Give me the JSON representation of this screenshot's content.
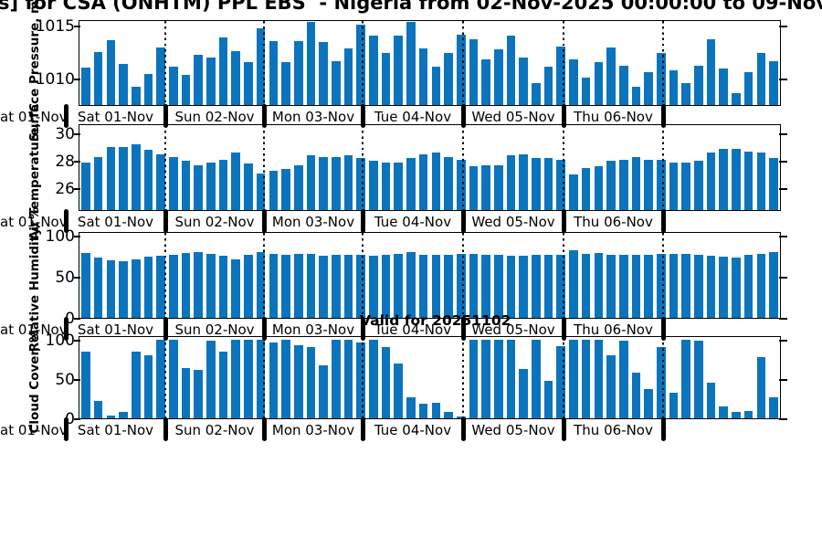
{
  "title": "s] for CSA (ONHTM) PPL EBS  - Nigeria from 02-Nov-2025 00:00:00 to 09-Nov",
  "annotations": {
    "valid_note": "Valid for 20251102"
  },
  "colors": {
    "bar": "#0b74bc",
    "axis": "#000000",
    "background": "#ffffff"
  },
  "x_axis": {
    "day_labels": [
      "Sat 01-Nov",
      "Sun 02-Nov",
      "Mon 03-Nov",
      "Tue 04-Nov",
      "Wed 05-Nov",
      "Thu 06-Nov"
    ],
    "clipped_left_label": "at 01-Nov",
    "samples_per_day": 8
  },
  "chart_data": [
    {
      "type": "bar",
      "ylabel": "Surface Pressure, mb",
      "yticks": [
        1010,
        1015
      ],
      "ylim": [
        1007.5,
        1015.4
      ],
      "values": [
        1011.0,
        1012.5,
        1013.6,
        1011.4,
        1009.2,
        1010.4,
        1012.9,
        1011.1,
        1010.3,
        1012.2,
        1012.0,
        1013.9,
        1012.6,
        1011.5,
        1014.7,
        1013.5,
        1011.5,
        1013.5,
        1015.3,
        1013.4,
        1011.6,
        1012.8,
        1015.1,
        1014.0,
        1012.4,
        1014.0,
        1015.3,
        1012.8,
        1011.1,
        1012.4,
        1014.1,
        1013.7,
        1011.8,
        1012.7,
        1014.0,
        1012.0,
        1009.6,
        1011.1,
        1013.0,
        1011.8,
        1010.1,
        1011.5,
        1012.9,
        1011.2,
        1009.2,
        1010.6,
        1012.4,
        1010.8,
        1009.6,
        1011.2,
        1013.7,
        1010.9,
        1008.6,
        1010.6,
        1012.4,
        1011.6
      ]
    },
    {
      "type": "bar",
      "ylabel": "Air Temperature, °C",
      "yticks": [
        26,
        28,
        30
      ],
      "ylim": [
        24.4,
        30.6
      ],
      "values": [
        27.9,
        28.3,
        29.0,
        29.0,
        29.2,
        28.8,
        28.5,
        28.3,
        28.0,
        27.7,
        27.9,
        28.1,
        28.6,
        27.8,
        27.1,
        27.3,
        27.4,
        27.7,
        28.4,
        28.3,
        28.3,
        28.4,
        28.2,
        28.0,
        27.9,
        27.9,
        28.2,
        28.5,
        28.6,
        28.3,
        28.1,
        27.6,
        27.7,
        27.7,
        28.4,
        28.5,
        28.2,
        28.2,
        28.1,
        27.0,
        27.5,
        27.6,
        28.0,
        28.1,
        28.3,
        28.1,
        28.1,
        27.9,
        27.9,
        28.0,
        28.6,
        28.9,
        28.9,
        28.7,
        28.6,
        28.2
      ]
    },
    {
      "type": "bar",
      "ylabel": "Relative Humidity, %",
      "yticks": [
        0,
        50,
        100
      ],
      "ylim": [
        0,
        103
      ],
      "values": [
        79,
        73,
        70,
        69,
        71,
        74,
        75,
        77,
        79,
        80,
        78,
        75,
        71,
        77,
        80,
        78,
        76,
        78,
        78,
        75,
        77,
        76,
        76,
        75,
        77,
        78,
        80,
        77,
        77,
        76,
        78,
        78,
        76,
        76,
        75,
        75,
        76,
        76,
        76,
        82,
        78,
        79,
        77,
        77,
        76,
        77,
        78,
        78,
        78,
        77,
        75,
        74,
        73,
        76,
        78,
        80
      ]
    },
    {
      "type": "bar",
      "ylabel": "Cloud Cover, %",
      "yticks": [
        0,
        50,
        100
      ],
      "ylim": [
        0,
        103
      ],
      "values": [
        84,
        22,
        4,
        8,
        84,
        80,
        100,
        100,
        64,
        61,
        98,
        85,
        100,
        100,
        100,
        96,
        100,
        93,
        90,
        67,
        100,
        100,
        96,
        100,
        90,
        70,
        27,
        18,
        20,
        8,
        2,
        100,
        100,
        100,
        100,
        62,
        100,
        48,
        92,
        100,
        100,
        100,
        80,
        98,
        58,
        37,
        90,
        33,
        100,
        98,
        45,
        15,
        8,
        9,
        78,
        27
      ]
    }
  ]
}
